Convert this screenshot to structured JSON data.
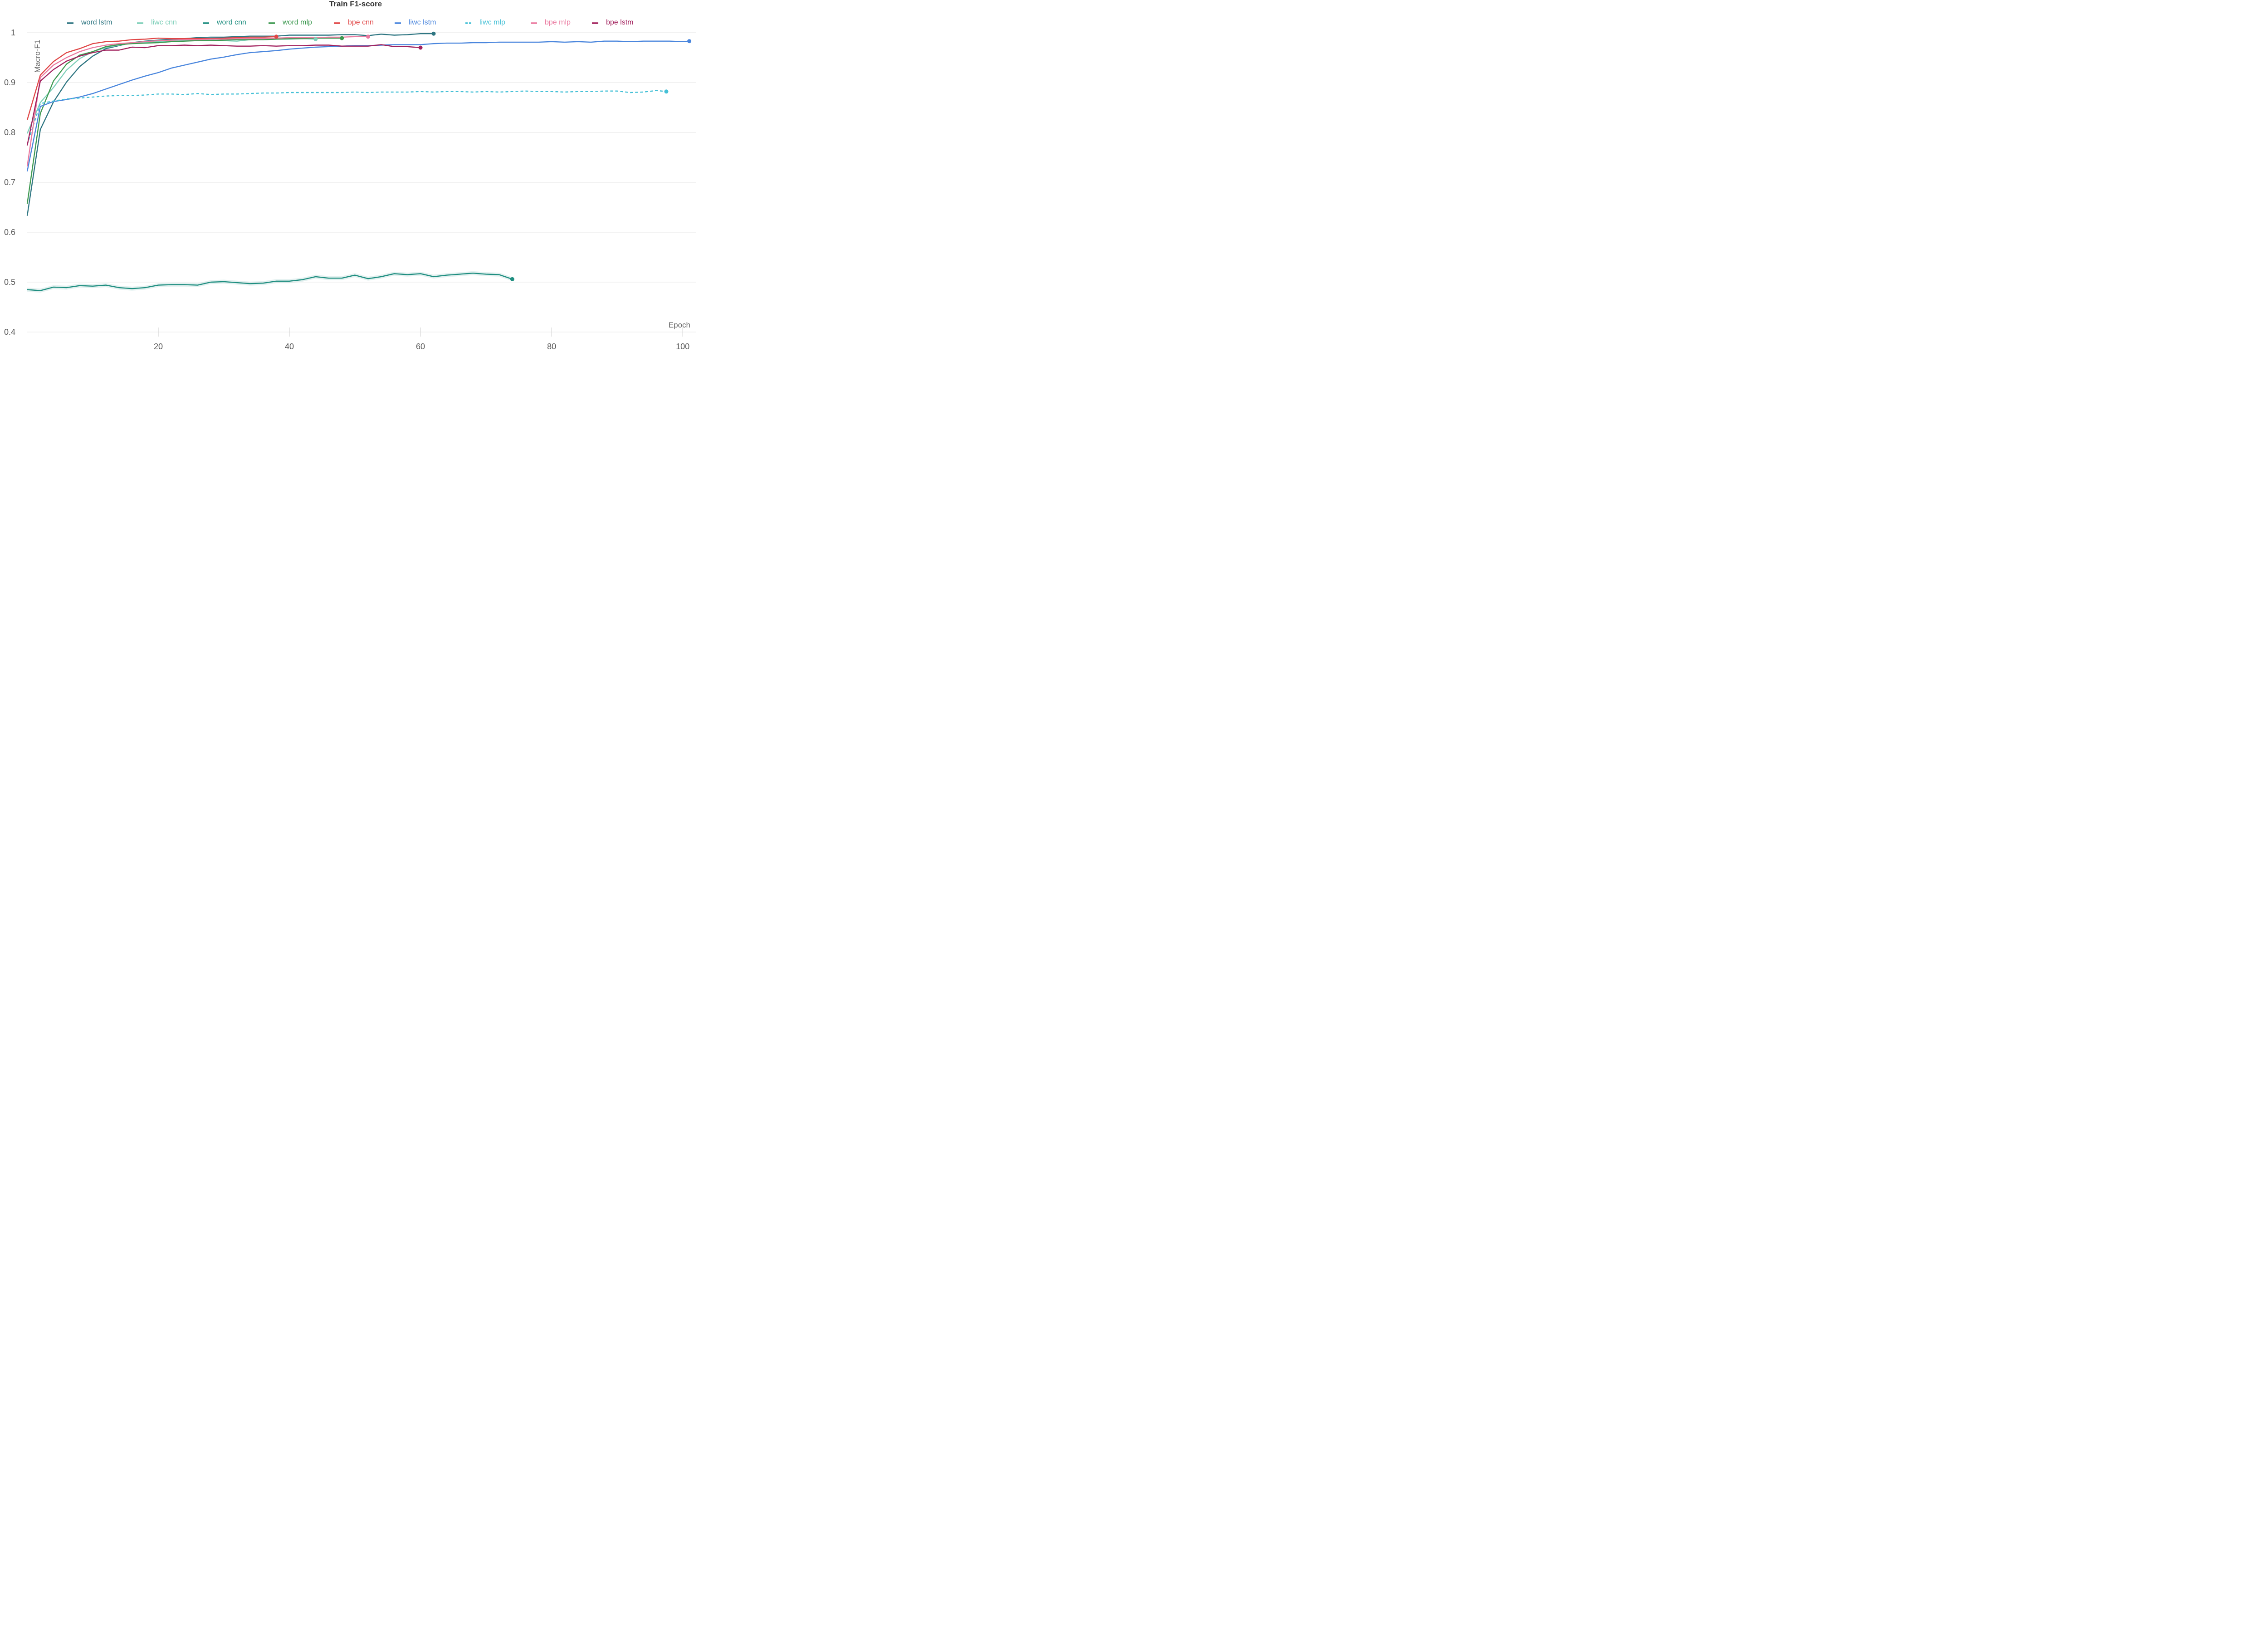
{
  "chart_data": {
    "type": "line",
    "title": "Train F1-score",
    "xlabel": "Epoch",
    "ylabel": "Macro-F1",
    "xlim": [
      0,
      102
    ],
    "ylim": [
      0.4,
      1.03
    ],
    "xticks": [
      20,
      40,
      60,
      80,
      100
    ],
    "yticks": [
      0.4,
      0.5,
      0.6,
      0.7,
      0.8,
      0.9,
      1
    ],
    "ytick_labels": [
      "0.4",
      "0.5",
      "0.6",
      "0.7",
      "0.8",
      "0.9",
      "1"
    ],
    "grid": "horizontal",
    "legend_position": "top",
    "series": [
      {
        "name": "word lstm",
        "color": "#2f7682",
        "dashed": false,
        "x": [
          0,
          2,
          4,
          6,
          8,
          10,
          12,
          14,
          16,
          18,
          20,
          22,
          24,
          26,
          28,
          30,
          32,
          34,
          36,
          38,
          40,
          42,
          44,
          46,
          48,
          50,
          52,
          54,
          56,
          58,
          60,
          62
        ],
        "y": [
          0.633,
          0.806,
          0.861,
          0.901,
          0.932,
          0.953,
          0.968,
          0.974,
          0.98,
          0.983,
          0.985,
          0.987,
          0.988,
          0.99,
          0.991,
          0.991,
          0.992,
          0.993,
          0.993,
          0.993,
          0.995,
          0.995,
          0.995,
          0.995,
          0.996,
          0.996,
          0.994,
          0.997,
          0.995,
          0.996,
          0.998,
          0.998
        ]
      },
      {
        "name": "liwc cnn",
        "color": "#7ecfb9",
        "dashed": false,
        "x": [
          0,
          2,
          4,
          6,
          8,
          10,
          12,
          14,
          16,
          18,
          20,
          22,
          24,
          26,
          28,
          30,
          32,
          34,
          36,
          38,
          40,
          42,
          44
        ],
        "y": [
          0.798,
          0.86,
          0.89,
          0.925,
          0.948,
          0.962,
          0.97,
          0.975,
          0.979,
          0.98,
          0.982,
          0.984,
          0.985,
          0.985,
          0.985,
          0.984,
          0.983,
          0.986,
          0.986,
          0.987,
          0.987,
          0.988,
          0.987
        ]
      },
      {
        "name": "word cnn",
        "color": "#1f8e80",
        "dashed": false,
        "x": [
          0,
          2,
          4,
          6,
          8,
          10,
          12,
          14,
          16,
          18,
          20,
          22,
          24,
          26,
          28,
          30,
          32,
          34,
          36,
          38,
          40,
          42,
          44,
          46,
          48,
          50,
          52,
          54,
          56,
          58,
          60,
          62,
          64,
          66,
          68,
          70,
          72,
          74
        ],
        "y": [
          0.485,
          0.483,
          0.49,
          0.489,
          0.493,
          0.492,
          0.494,
          0.489,
          0.487,
          0.489,
          0.494,
          0.495,
          0.495,
          0.494,
          0.5,
          0.501,
          0.499,
          0.497,
          0.498,
          0.502,
          0.502,
          0.505,
          0.511,
          0.508,
          0.508,
          0.514,
          0.507,
          0.511,
          0.517,
          0.515,
          0.517,
          0.511,
          0.514,
          0.516,
          0.518,
          0.516,
          0.515,
          0.506
        ]
      },
      {
        "name": "word mlp",
        "color": "#3d9950",
        "dashed": false,
        "x": [
          0,
          2,
          4,
          6,
          8,
          10,
          12,
          14,
          16,
          18,
          20,
          22,
          24,
          26,
          28,
          30,
          32,
          34,
          36,
          38,
          40,
          42,
          44,
          46,
          48
        ],
        "y": [
          0.657,
          0.838,
          0.903,
          0.937,
          0.955,
          0.962,
          0.972,
          0.976,
          0.978,
          0.979,
          0.98,
          0.982,
          0.983,
          0.984,
          0.984,
          0.985,
          0.986,
          0.986,
          0.986,
          0.987,
          0.988,
          0.988,
          0.989,
          0.989,
          0.989
        ]
      },
      {
        "name": "bpe cnn",
        "color": "#e04646",
        "dashed": false,
        "x": [
          0,
          2,
          4,
          6,
          8,
          10,
          12,
          14,
          16,
          18,
          20,
          22,
          24,
          26,
          28,
          30,
          32,
          34,
          36,
          38
        ],
        "y": [
          0.825,
          0.915,
          0.942,
          0.96,
          0.968,
          0.978,
          0.982,
          0.983,
          0.986,
          0.987,
          0.989,
          0.988,
          0.988,
          0.988,
          0.988,
          0.989,
          0.99,
          0.991,
          0.991,
          0.992
        ]
      },
      {
        "name": "liwc lstm",
        "color": "#4a86dd",
        "dashed": false,
        "x": [
          0,
          2,
          4,
          6,
          8,
          10,
          12,
          14,
          16,
          18,
          20,
          22,
          24,
          26,
          28,
          30,
          32,
          34,
          36,
          38,
          40,
          42,
          44,
          46,
          48,
          50,
          52,
          54,
          56,
          58,
          60,
          62,
          64,
          66,
          68,
          70,
          72,
          74,
          76,
          78,
          80,
          82,
          84,
          86,
          88,
          90,
          92,
          94,
          96,
          98,
          100,
          101
        ],
        "y": [
          0.722,
          0.852,
          0.862,
          0.866,
          0.871,
          0.878,
          0.887,
          0.896,
          0.905,
          0.913,
          0.92,
          0.929,
          0.935,
          0.941,
          0.947,
          0.951,
          0.956,
          0.96,
          0.962,
          0.964,
          0.967,
          0.969,
          0.971,
          0.972,
          0.973,
          0.974,
          0.974,
          0.975,
          0.976,
          0.976,
          0.976,
          0.978,
          0.979,
          0.979,
          0.98,
          0.98,
          0.981,
          0.981,
          0.981,
          0.981,
          0.982,
          0.981,
          0.982,
          0.981,
          0.983,
          0.983,
          0.982,
          0.983,
          0.983,
          0.983,
          0.982,
          0.983
        ]
      },
      {
        "name": "liwc mlp",
        "color": "#45c0d6",
        "dashed": true,
        "x": [
          0,
          2,
          4,
          6,
          8,
          10,
          12,
          14,
          16,
          18,
          20,
          22,
          24,
          26,
          28,
          30,
          32,
          34,
          36,
          38,
          40,
          42,
          44,
          46,
          48,
          50,
          52,
          54,
          56,
          58,
          60,
          62,
          64,
          66,
          68,
          70,
          72,
          74,
          76,
          78,
          80,
          82,
          84,
          86,
          88,
          90,
          92,
          94,
          96,
          97.5
        ],
        "y": [
          0.776,
          0.858,
          0.863,
          0.867,
          0.869,
          0.871,
          0.873,
          0.874,
          0.874,
          0.875,
          0.877,
          0.877,
          0.876,
          0.878,
          0.876,
          0.877,
          0.877,
          0.878,
          0.879,
          0.879,
          0.88,
          0.88,
          0.88,
          0.88,
          0.88,
          0.881,
          0.88,
          0.881,
          0.881,
          0.881,
          0.882,
          0.881,
          0.882,
          0.882,
          0.881,
          0.882,
          0.881,
          0.882,
          0.883,
          0.882,
          0.882,
          0.881,
          0.882,
          0.882,
          0.883,
          0.883,
          0.88,
          0.881,
          0.884,
          0.882
        ]
      },
      {
        "name": "bpe mlp",
        "color": "#ea7aa0",
        "dashed": false,
        "x": [
          0,
          2,
          4,
          6,
          8,
          10,
          12,
          14,
          16,
          18,
          20,
          22,
          24,
          26,
          28,
          30,
          32,
          34,
          36,
          38,
          40,
          42,
          44,
          46,
          48,
          50,
          52
        ],
        "y": [
          0.732,
          0.91,
          0.935,
          0.95,
          0.962,
          0.97,
          0.975,
          0.978,
          0.98,
          0.982,
          0.984,
          0.985,
          0.986,
          0.986,
          0.987,
          0.987,
          0.988,
          0.988,
          0.988,
          0.989,
          0.99,
          0.99,
          0.99,
          0.991,
          0.991,
          0.992,
          0.992
        ]
      },
      {
        "name": "bpe lstm",
        "color": "#a2225e",
        "dashed": false,
        "x": [
          0,
          2,
          4,
          6,
          8,
          10,
          12,
          14,
          16,
          18,
          20,
          22,
          24,
          26,
          28,
          30,
          32,
          34,
          36,
          38,
          40,
          42,
          44,
          46,
          48,
          50,
          52,
          54,
          56,
          58,
          60
        ],
        "y": [
          0.774,
          0.903,
          0.926,
          0.943,
          0.953,
          0.96,
          0.965,
          0.965,
          0.971,
          0.97,
          0.974,
          0.974,
          0.975,
          0.974,
          0.975,
          0.974,
          0.973,
          0.973,
          0.974,
          0.973,
          0.974,
          0.974,
          0.975,
          0.975,
          0.973,
          0.973,
          0.973,
          0.976,
          0.972,
          0.972,
          0.97
        ]
      }
    ]
  }
}
